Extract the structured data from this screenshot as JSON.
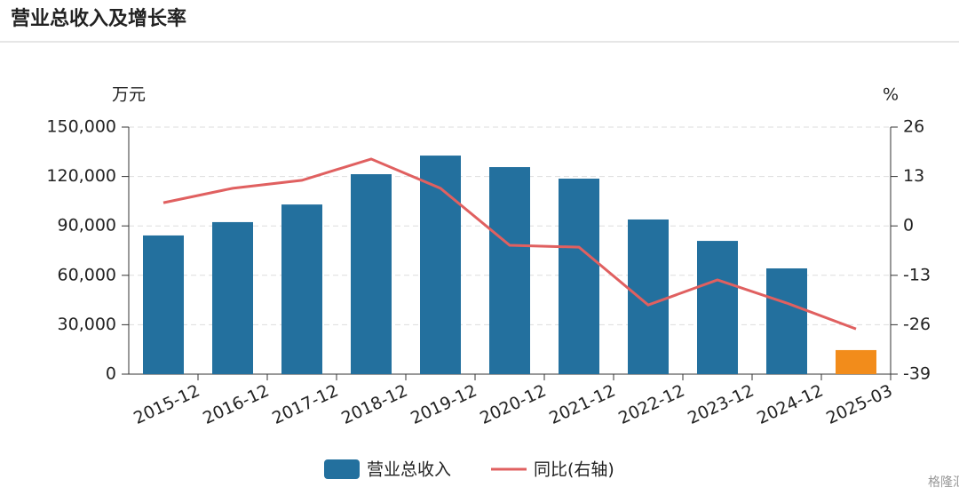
{
  "header": {
    "title": "营业总收入及增长率"
  },
  "chart_data": {
    "type": "bar-line",
    "y_unit": "万元",
    "y2_unit": "%",
    "categories": [
      "2015-12",
      "2016-12",
      "2017-12",
      "2018-12",
      "2019-12",
      "2020-12",
      "2021-12",
      "2022-12",
      "2023-12",
      "2024-12",
      "2025-03"
    ],
    "series": [
      {
        "name": "营业总收入",
        "type": "bar",
        "color": "#23709e",
        "colors": [
          "#23709e",
          "#23709e",
          "#23709e",
          "#23709e",
          "#23709e",
          "#23709e",
          "#23709e",
          "#23709e",
          "#23709e",
          "#23709e",
          "#f28c1b"
        ],
        "values": [
          84200,
          92300,
          103000,
          121400,
          132700,
          125700,
          118700,
          93900,
          80900,
          64200,
          14600
        ]
      },
      {
        "name": "同比(右轴)",
        "type": "line",
        "axis": "y2",
        "color": "#e06060",
        "values": [
          6.1,
          9.9,
          12.0,
          17.6,
          9.9,
          -5.1,
          -5.6,
          -20.8,
          -14.2,
          -20.3,
          -27.1
        ]
      }
    ],
    "ylim": [
      0,
      150000
    ],
    "yticks": [
      0,
      {
        "value": 30000,
        "label": "30,000"
      },
      {
        "value": 60000,
        "label": "60,000"
      },
      {
        "value": 90000,
        "label": "90,000"
      },
      {
        "value": 120000,
        "label": "120,000"
      },
      {
        "value": 150000,
        "label": "150,000"
      }
    ],
    "y2lim": [
      -39,
      26
    ],
    "y2ticks": [
      -39,
      -26,
      -13,
      0,
      13,
      26
    ],
    "grid": true
  },
  "watermark": "格隆汇"
}
